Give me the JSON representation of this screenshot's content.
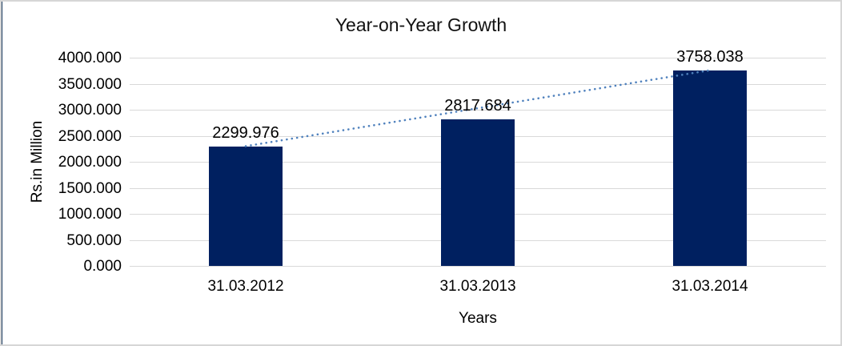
{
  "chart_data": {
    "type": "bar",
    "title": "Year-on-Year Growth",
    "xlabel": "Years",
    "ylabel": "Rs.in Million",
    "categories": [
      "31.03.2012",
      "31.03.2013",
      "31.03.2014"
    ],
    "values": [
      2299.976,
      2817.684,
      3758.038
    ],
    "data_labels": [
      "2299.976",
      "2817.684",
      "3758.038"
    ],
    "ylim": [
      0,
      4000
    ],
    "ytick_interval": 500,
    "yticks": [
      "4000.000",
      "3500.000",
      "3000.000",
      "2500.000",
      "2000.000",
      "1500.000",
      "1000.000",
      "500.000",
      "0.000"
    ],
    "grid": true,
    "legend_position": "none",
    "trendline": {
      "type": "linear",
      "style": "dotted",
      "spans": "first-to-last-category"
    },
    "colors": {
      "bar": "#002060",
      "trendline": "#4f81bd",
      "gridline": "#d9d9d9",
      "text": "#000000",
      "frame_border": "#d6d6d6",
      "left_edge": "#16365c",
      "background": "#ffffff"
    }
  }
}
